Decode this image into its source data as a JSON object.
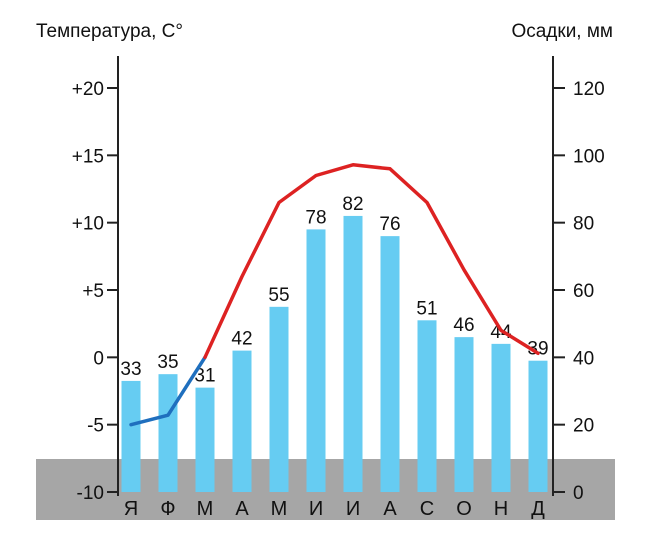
{
  "chart_data": {
    "type": "bar+line",
    "left_axis_title": "Температура, С°",
    "right_axis_title": "Осадки, мм",
    "categories": [
      "Я",
      "Ф",
      "М",
      "А",
      "М",
      "И",
      "И",
      "А",
      "С",
      "О",
      "Н",
      "Д"
    ],
    "precipitation": {
      "values": [
        33,
        35,
        31,
        42,
        55,
        78,
        82,
        76,
        51,
        46,
        44,
        39
      ],
      "color": "#66CCF2",
      "ylim": [
        0,
        130
      ],
      "ticks": [
        0,
        20,
        40,
        60,
        80,
        100,
        120
      ],
      "tick_labels": [
        "0",
        "20",
        "40",
        "60",
        "80",
        "100",
        "120"
      ]
    },
    "temperature": {
      "values": [
        -5,
        -4.3,
        0,
        6,
        11.5,
        13.5,
        14.3,
        14,
        11.5,
        6.5,
        2,
        0.3
      ],
      "ylim": [
        -10,
        22
      ],
      "ticks": [
        -10,
        -5,
        0,
        5,
        10,
        15,
        20
      ],
      "tick_labels": [
        "-10",
        "-5",
        "0",
        "+5",
        "+10",
        "+15",
        "+20"
      ],
      "color_below_zero": "#1F6FBE",
      "color_above_zero": "#DD2222"
    },
    "band_color": "#A6A6A6",
    "grid": false
  }
}
